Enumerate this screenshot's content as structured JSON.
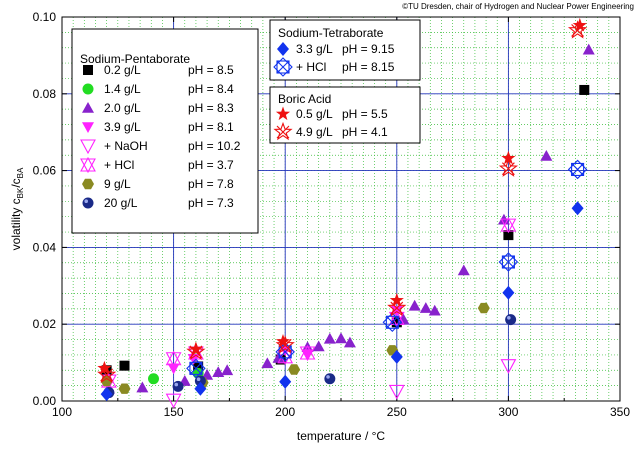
{
  "copyright": "©TU Dresden, chair of Hydrogen and Nuclear Power Engineering",
  "chart_data": {
    "type": "scatter",
    "xlabel": "temperature / °C",
    "ylabel": "volatility c",
    "ylabel_sub1": "BK",
    "ylabel_mid": "/c",
    "ylabel_sub2": "BA",
    "xlim": [
      100,
      350
    ],
    "ylim": [
      0.0,
      0.1
    ],
    "xticks": [
      100,
      150,
      200,
      250,
      300,
      350
    ],
    "yticks": [
      0.0,
      0.02,
      0.04,
      0.06,
      0.08,
      0.1
    ],
    "xtick_labels": [
      "100",
      "150",
      "200",
      "250",
      "300",
      "350"
    ],
    "ytick_labels": [
      "0.00",
      "0.02",
      "0.04",
      "0.06",
      "0.08",
      "0.10"
    ],
    "grid": true,
    "legend_groups": [
      {
        "title": "Sodium-Pentaborate",
        "entries": [
          {
            "series": 0,
            "conc": "0.2 g/L",
            "ph": "pH =   8.5"
          },
          {
            "series": 1,
            "conc": "1.4 g/L",
            "ph": "pH =   8.4"
          },
          {
            "series": 2,
            "conc": "2.0 g/L",
            "ph": "pH =   8.3"
          },
          {
            "series": 3,
            "conc": "3.9 g/L",
            "ph": "pH =   8.1"
          },
          {
            "series": 4,
            "conc": " + NaOH",
            "ph": "pH = 10.2"
          },
          {
            "series": 5,
            "conc": " + HCl",
            "ph": "pH =   3.7"
          },
          {
            "series": 6,
            "conc": "9 g/L",
            "ph": "pH =   7.8"
          },
          {
            "series": 7,
            "conc": "20 g/L",
            "ph": "pH =   7.3"
          }
        ]
      },
      {
        "title": "Sodium-Tetraborate",
        "entries": [
          {
            "series": 8,
            "conc": "3.3 g/L",
            "ph": "pH = 9.15"
          },
          {
            "series": 9,
            "conc": " + HCl",
            "ph": "pH = 8.15"
          }
        ]
      },
      {
        "title": "Boric Acid",
        "entries": [
          {
            "series": 10,
            "conc": "0.5 g/L",
            "ph": "pH = 5.5"
          },
          {
            "series": 11,
            "conc": "4.9 g/L",
            "ph": "pH = 4.1"
          }
        ]
      }
    ],
    "series": [
      {
        "marker": "square",
        "color": "#000000",
        "points": [
          [
            120,
            0.008
          ],
          [
            128,
            0.0092
          ],
          [
            161,
            0.009
          ],
          [
            198,
            0.0108
          ],
          [
            250,
            0.0205
          ],
          [
            300,
            0.0432
          ],
          [
            334,
            0.081
          ]
        ]
      },
      {
        "marker": "circle",
        "color": "#22dd22",
        "points": [
          [
            141,
            0.0058
          ],
          [
            161,
            0.0072
          ]
        ]
      },
      {
        "marker": "triangle-up",
        "color": "#8822cc",
        "points": [
          [
            121,
            0.0032
          ],
          [
            136,
            0.0035
          ],
          [
            155,
            0.0052
          ],
          [
            165,
            0.0068
          ],
          [
            170,
            0.0075
          ],
          [
            174,
            0.008
          ],
          [
            192,
            0.0098
          ],
          [
            197,
            0.0112
          ],
          [
            210,
            0.014
          ],
          [
            215,
            0.0142
          ],
          [
            220,
            0.0162
          ],
          [
            225,
            0.0163
          ],
          [
            229,
            0.0152
          ],
          [
            253,
            0.0212
          ],
          [
            258,
            0.0248
          ],
          [
            263,
            0.0242
          ],
          [
            267,
            0.0235
          ],
          [
            280,
            0.034
          ],
          [
            298,
            0.0472
          ],
          [
            317,
            0.0638
          ],
          [
            336,
            0.0915
          ]
        ]
      },
      {
        "marker": "triangle-down",
        "color": "#ff22ff",
        "points": [
          [
            150,
            0.0085
          ],
          [
            159,
            0.011
          ],
          [
            200,
            0.0132
          ],
          [
            210,
            0.0122
          ],
          [
            250,
            0.0235
          ]
        ]
      },
      {
        "marker": "triangle-down-open",
        "color": "#ff22ff",
        "points": [
          [
            150,
            0.0002
          ],
          [
            250,
            0.0025
          ],
          [
            300,
            0.0092
          ]
        ]
      },
      {
        "marker": "triangle-xopen",
        "color": "#ff22ff",
        "points": [
          [
            121,
            0.0052
          ],
          [
            150,
            0.011
          ],
          [
            160,
            0.0125
          ],
          [
            200,
            0.0115
          ],
          [
            210,
            0.0125
          ],
          [
            250,
            0.0215
          ],
          [
            300,
            0.0458
          ]
        ]
      },
      {
        "marker": "hexagon",
        "color": "#8a8a22",
        "points": [
          [
            120,
            0.0052
          ],
          [
            128,
            0.0032
          ],
          [
            163,
            0.0048
          ],
          [
            204,
            0.0082
          ],
          [
            248,
            0.0132
          ],
          [
            289,
            0.0242
          ]
        ]
      },
      {
        "marker": "sphere",
        "color": "#1a2a88",
        "points": [
          [
            121,
            0.0022
          ],
          [
            152,
            0.0038
          ],
          [
            162,
            0.0052
          ],
          [
            220,
            0.0058
          ],
          [
            301,
            0.0212
          ]
        ]
      },
      {
        "marker": "diamond",
        "color": "#1133ee",
        "points": [
          [
            120,
            0.0018
          ],
          [
            162,
            0.0032
          ],
          [
            200,
            0.005
          ],
          [
            250,
            0.0115
          ],
          [
            300,
            0.0282
          ],
          [
            331,
            0.0502
          ]
        ]
      },
      {
        "marker": "square-xopen",
        "color": "#1133ee",
        "points": [
          [
            160,
            0.0085
          ],
          [
            200,
            0.0128
          ],
          [
            248,
            0.0205
          ],
          [
            300,
            0.0362
          ],
          [
            331,
            0.0603
          ]
        ]
      },
      {
        "marker": "star",
        "color": "#ee1111",
        "points": [
          [
            119,
            0.0085
          ],
          [
            160,
            0.0135
          ],
          [
            199,
            0.0155
          ],
          [
            250,
            0.0262
          ],
          [
            300,
            0.0632
          ],
          [
            332,
            0.0978
          ]
        ]
      },
      {
        "marker": "asterisk-open",
        "color": "#ee1111",
        "points": [
          [
            120,
            0.0068
          ],
          [
            160,
            0.0128
          ],
          [
            200,
            0.0145
          ],
          [
            250,
            0.0242
          ],
          [
            300,
            0.0605
          ],
          [
            331,
            0.0965
          ]
        ]
      }
    ]
  }
}
